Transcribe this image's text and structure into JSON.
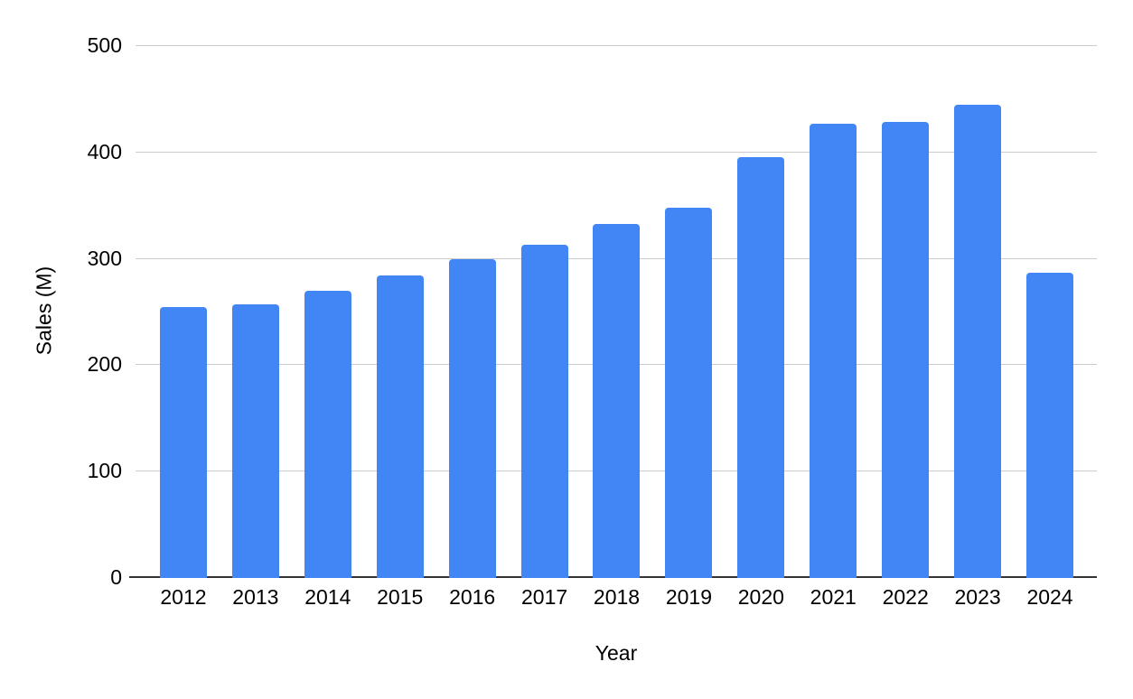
{
  "chart_data": {
    "type": "bar",
    "title": "",
    "xlabel": "Year",
    "ylabel": "Sales (M)",
    "categories": [
      "2012",
      "2013",
      "2014",
      "2015",
      "2016",
      "2017",
      "2018",
      "2019",
      "2020",
      "2021",
      "2022",
      "2023",
      "2024"
    ],
    "values": [
      255,
      257,
      270,
      284,
      300,
      313,
      333,
      348,
      396,
      427,
      429,
      445,
      287
    ],
    "series_name": "Sales (M)",
    "ylim": [
      0,
      500
    ],
    "yticks": [
      0,
      100,
      200,
      300,
      400,
      500
    ],
    "grid": "horizontal",
    "legend": "none",
    "colors": {
      "bar": "#4285F4",
      "gridline": "#cccccc",
      "axis_line": "#333333",
      "text": "#000000",
      "background": "#ffffff"
    }
  }
}
